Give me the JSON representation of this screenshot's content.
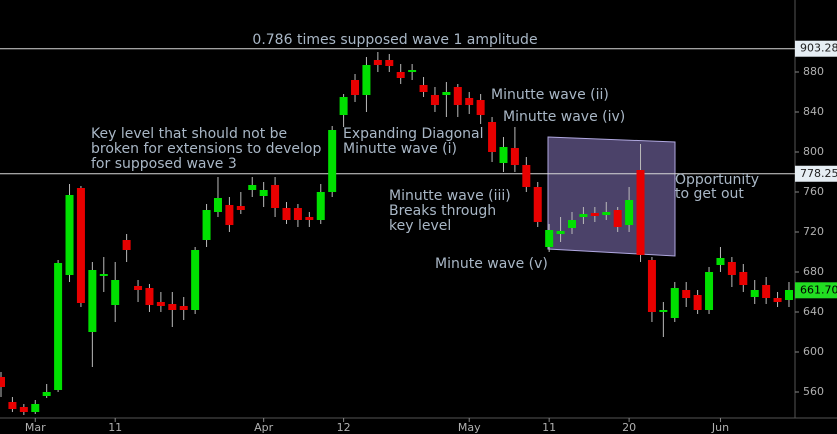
{
  "chart_data": {
    "type": "candlestick",
    "categories": [
      null,
      null,
      null,
      "Mar",
      null,
      null,
      null,
      null,
      null,
      null,
      "11",
      null,
      null,
      null,
      null,
      null,
      null,
      null,
      null,
      null,
      null,
      null,
      null,
      "Apr",
      null,
      null,
      null,
      null,
      null,
      null,
      "12",
      null,
      null,
      null,
      null,
      null,
      null,
      null,
      null,
      null,
      null,
      "May",
      null,
      null,
      null,
      null,
      null,
      null,
      "11",
      null,
      null,
      null,
      null,
      null,
      null,
      "20",
      null,
      null,
      null,
      null,
      null,
      null,
      null,
      "Jun",
      null,
      null,
      null,
      null,
      null,
      null
    ],
    "open": [
      575,
      550,
      545,
      540,
      556,
      562,
      677,
      764,
      620,
      676,
      647,
      712,
      666,
      664,
      650,
      648,
      646,
      642,
      712,
      740,
      747,
      746,
      762,
      756,
      767,
      744,
      744,
      735,
      732,
      760,
      837,
      872,
      857,
      892,
      892,
      880,
      880,
      867,
      857,
      857,
      865,
      854,
      852,
      830,
      789,
      804,
      787,
      765,
      705,
      718,
      724,
      735,
      739,
      737,
      742,
      727,
      782,
      692,
      640,
      634,
      662,
      657,
      642,
      687,
      690,
      680,
      655,
      667,
      654,
      652
    ],
    "high": [
      580,
      555,
      548,
      552,
      568,
      692,
      768,
      766,
      690,
      695,
      690,
      718,
      672,
      668,
      660,
      660,
      655,
      705,
      748,
      775,
      755,
      760,
      775,
      770,
      775,
      750,
      748,
      740,
      768,
      826,
      858,
      878,
      895,
      900,
      898,
      888,
      888,
      875,
      865,
      870,
      868,
      860,
      858,
      835,
      815,
      825,
      795,
      770,
      728,
      735,
      740,
      745,
      745,
      750,
      745,
      765,
      808,
      695,
      650,
      670,
      670,
      662,
      685,
      705,
      695,
      688,
      672,
      675,
      660,
      670
    ],
    "low": [
      555,
      540,
      537,
      538,
      554,
      560,
      670,
      645,
      585,
      660,
      630,
      690,
      650,
      640,
      640,
      625,
      632,
      638,
      705,
      735,
      720,
      738,
      755,
      745,
      735,
      728,
      725,
      725,
      728,
      755,
      825,
      850,
      840,
      880,
      880,
      868,
      872,
      855,
      840,
      835,
      835,
      838,
      828,
      790,
      780,
      780,
      760,
      725,
      700,
      710,
      718,
      728,
      730,
      732,
      720,
      720,
      690,
      630,
      615,
      630,
      645,
      638,
      638,
      680,
      665,
      660,
      648,
      648,
      645,
      645
    ],
    "close": [
      565,
      543,
      540,
      548,
      560,
      689,
      757,
      649,
      682,
      678,
      672,
      702,
      662,
      647,
      646,
      642,
      642,
      702,
      742,
      754,
      727,
      742,
      767,
      762,
      744,
      732,
      732,
      732,
      760,
      822,
      855,
      857,
      887,
      887,
      886,
      874,
      882,
      860,
      847,
      860,
      847,
      847,
      837,
      800,
      805,
      787,
      765,
      730,
      722,
      721,
      732,
      738,
      736,
      740,
      725,
      752,
      697,
      640,
      642,
      664,
      654,
      642,
      680,
      694,
      677,
      667,
      662,
      654,
      650,
      662
    ],
    "up_color": "#00e000",
    "down_color": "#e80000",
    "ylim": [
      537,
      952
    ],
    "yticks": [
      560,
      600,
      640,
      680,
      720,
      760,
      800,
      840,
      880
    ],
    "price_lines": [
      903.28,
      778.25
    ],
    "last_price": {
      "value": 661.7,
      "label": "661.70"
    },
    "annotations": {
      "level_1": "0.786 times supposed wave 1 amplitude",
      "key_level": [
        "Key level that should not be",
        "broken for extensions to develop",
        "for supposed wave 3"
      ],
      "wave_i": [
        "Expanding Diagonal",
        "Minutte  wave (i)"
      ],
      "wave_ii": "Minutte wave (ii)",
      "wave_iv": "Minutte wave (iv)",
      "wave_iii": [
        "Minutte wave (iii)",
        "Breaks through",
        "key level"
      ],
      "wave_v": "Minute wave (v)",
      "opportunity": [
        "Opportunity",
        "to get out"
      ]
    }
  }
}
